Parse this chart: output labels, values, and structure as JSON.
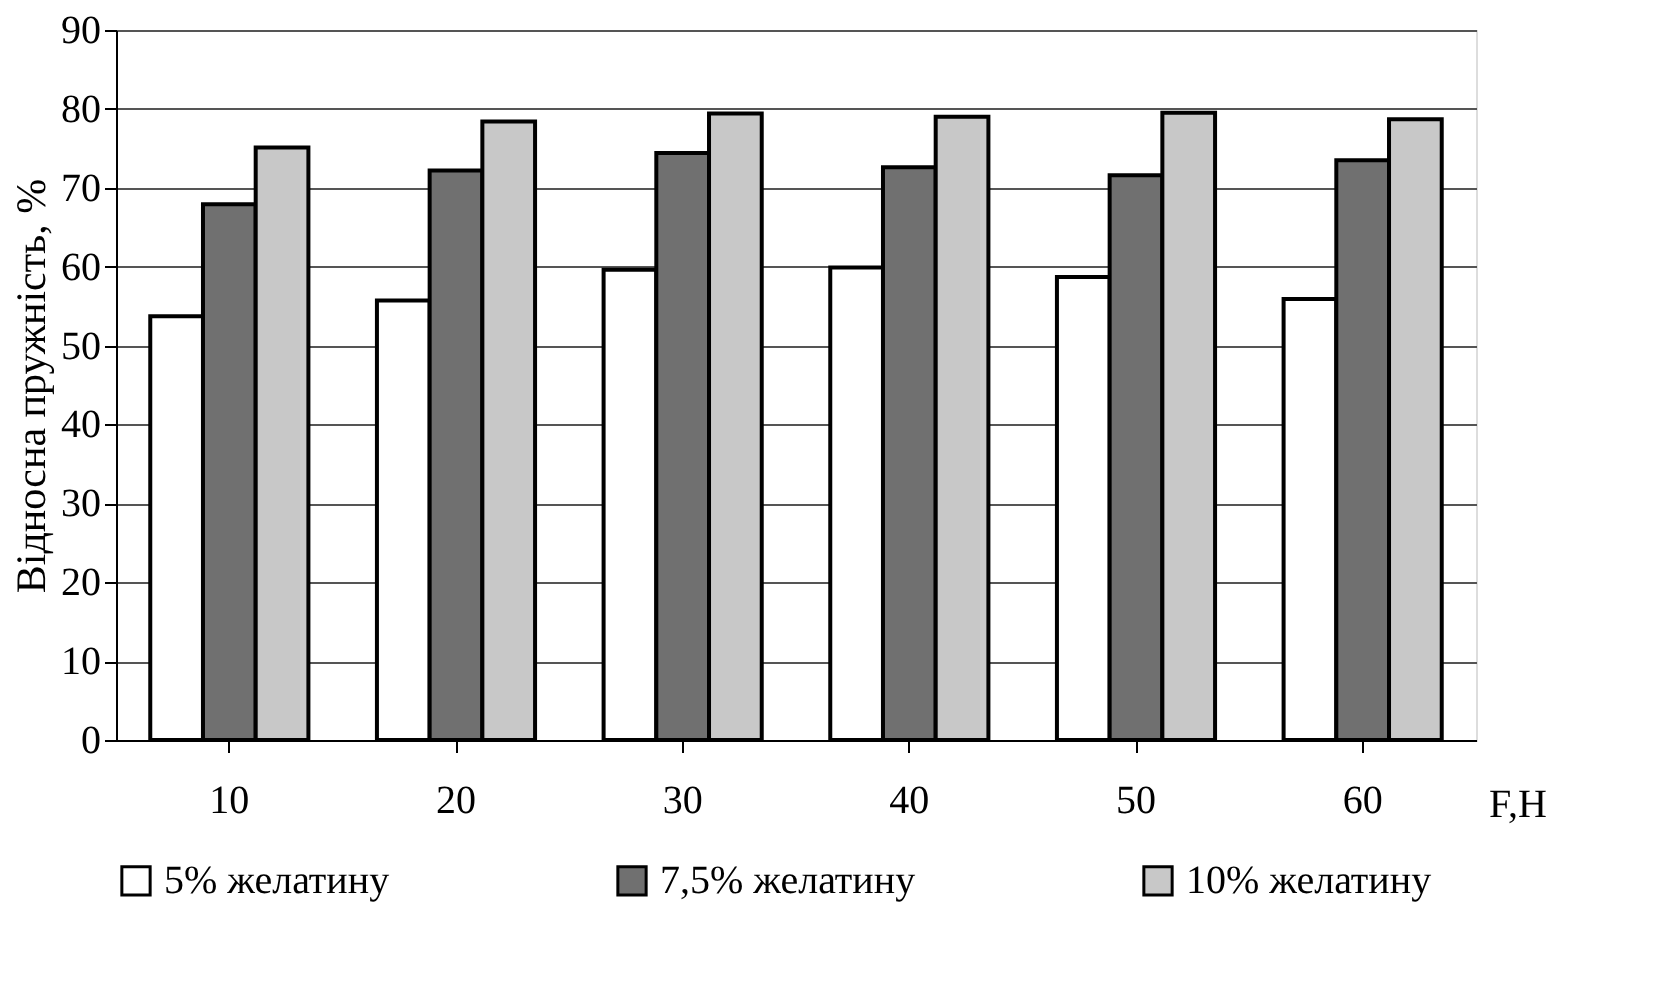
{
  "chart_data": {
    "type": "bar",
    "xlabel": "F,H",
    "ylabel": "Відносна пружність, %",
    "categories": [
      "10",
      "20",
      "30",
      "40",
      "50",
      "60"
    ],
    "series": [
      {
        "name": "5% желатину",
        "color": "#ffffff",
        "values": [
          53.7,
          55.7,
          59.6,
          59.9,
          58.7,
          55.9
        ]
      },
      {
        "name": "7,5% желатину",
        "color": "#707070",
        "values": [
          67.9,
          72.2,
          74.4,
          72.6,
          71.6,
          73.5
        ]
      },
      {
        "name": "10% желатину",
        "color": "#c8c8c8",
        "values": [
          75.1,
          78.4,
          79.4,
          79.0,
          79.5,
          78.7
        ]
      }
    ],
    "ylim": [
      0,
      90
    ],
    "yticks": [
      0,
      10,
      20,
      30,
      40,
      50,
      60,
      70,
      80,
      90
    ],
    "grid": "y",
    "legend": "bottom"
  }
}
